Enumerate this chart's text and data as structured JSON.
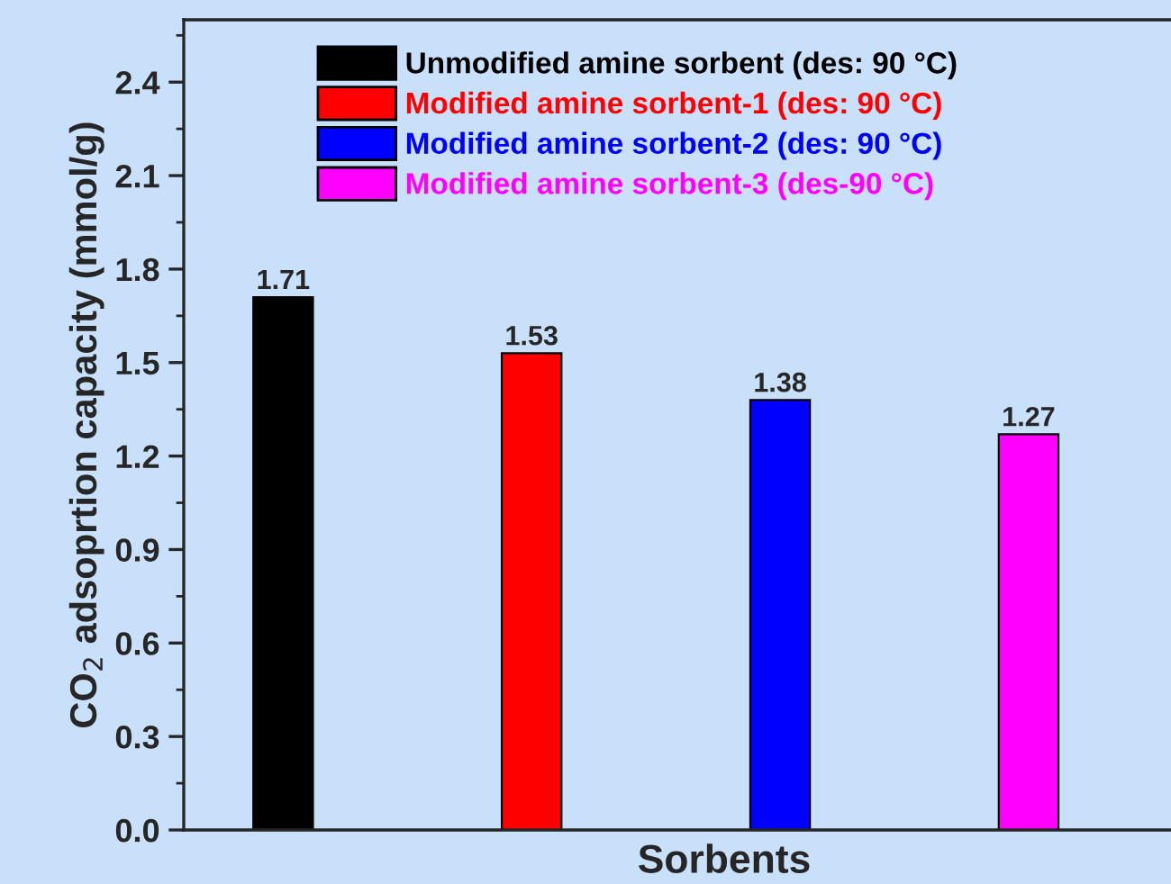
{
  "chart_data": {
    "type": "bar",
    "xlabel": "Sorbents",
    "ylabel": "CO$_{2}$ adsoprtion capacity (mmol/g)",
    "categories": [
      null,
      null,
      null,
      null
    ],
    "series": [
      {
        "name": "Unmodified amine sorbent (des: 90 °C)",
        "color": "#000000",
        "values": [
          1.71,
          null,
          null,
          null
        ]
      },
      {
        "name": "Modified amine sorbent-1 (des: 90 °C)",
        "color": "#ff0000",
        "values": [
          null,
          1.53,
          null,
          null
        ]
      },
      {
        "name": "Modified amine sorbent-2 (des: 90 °C)",
        "color": "#0000ff",
        "values": [
          null,
          null,
          1.38,
          null
        ]
      },
      {
        "name": "Modified amine sorbent-3 (des-90 °C)",
        "color": "#ff00ff",
        "values": [
          null,
          null,
          null,
          1.27
        ]
      }
    ],
    "ylim": [
      0,
      2.6
    ],
    "yticks": [
      {
        "value": 0,
        "label": "0.0"
      },
      {
        "value": 0.3,
        "label": "0.3"
      },
      {
        "value": 0.6,
        "label": "0.6"
      },
      {
        "value": 0.9,
        "label": "0.9"
      },
      {
        "value": 1.2,
        "label": "1.2"
      },
      {
        "value": 1.5,
        "label": "1.5"
      },
      {
        "value": 1.8,
        "label": "1.8"
      },
      {
        "value": 2.1,
        "label": "2.1"
      },
      {
        "value": 2.4,
        "label": "2.4"
      }
    ],
    "data_labels": true,
    "legend": "top",
    "grid": false
  }
}
